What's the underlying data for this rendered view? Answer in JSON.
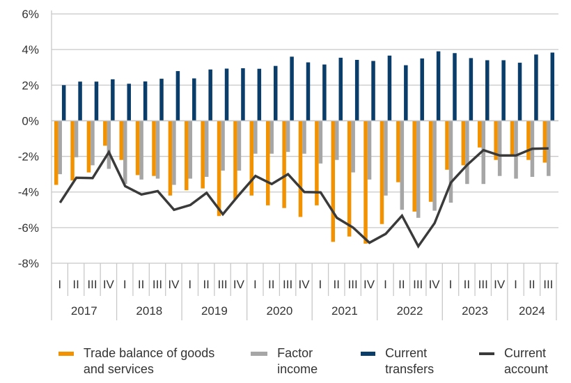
{
  "chart_data": {
    "type": "bar",
    "title": "",
    "xlabel": "",
    "ylabel": "",
    "ylim": [
      -8,
      6
    ],
    "yticks": [
      "-8%",
      "-6%",
      "-4%",
      "-2%",
      "0%",
      "2%",
      "4%",
      "6%"
    ],
    "ytick_values": [
      -8,
      -6,
      -4,
      -2,
      0,
      2,
      4,
      6
    ],
    "grid": true,
    "legend_position": "bottom",
    "years": [
      {
        "label": "2017",
        "quarters": [
          "I",
          "II",
          "III",
          "IV"
        ]
      },
      {
        "label": "2018",
        "quarters": [
          "I",
          "II",
          "III",
          "IV"
        ]
      },
      {
        "label": "2019",
        "quarters": [
          "I",
          "II",
          "III",
          "IV"
        ]
      },
      {
        "label": "2020",
        "quarters": [
          "I",
          "II",
          "III",
          "IV"
        ]
      },
      {
        "label": "2021",
        "quarters": [
          "I",
          "II",
          "III",
          "IV"
        ]
      },
      {
        "label": "2022",
        "quarters": [
          "I",
          "II",
          "III",
          "IV"
        ]
      },
      {
        "label": "2023",
        "quarters": [
          "I",
          "II",
          "III",
          "IV"
        ]
      },
      {
        "label": "2024",
        "quarters": [
          "I",
          "II",
          "III"
        ]
      }
    ],
    "series": [
      {
        "name": "Trade balance of goods and services",
        "type": "bar",
        "color": "#f39200",
        "values": [
          -3.6,
          -3.35,
          -2.9,
          -1.4,
          -2.2,
          -3.05,
          -3.1,
          -4.2,
          -3.9,
          -3.8,
          -5.35,
          -4.4,
          -4.2,
          -4.75,
          -4.9,
          -5.4,
          -4.75,
          -6.8,
          -6.5,
          -6.9,
          -5.8,
          -3.45,
          -5.1,
          -4.55,
          -2.75,
          -2.5,
          -1.5,
          -2.2,
          -1.9,
          -2.2,
          -2.35
        ]
      },
      {
        "name": "Factor income",
        "type": "bar",
        "color": "#a6a6a6",
        "values": [
          -3.0,
          -2.05,
          -2.5,
          -2.7,
          -3.55,
          -3.3,
          -3.25,
          -3.6,
          -3.25,
          -3.15,
          -2.8,
          -2.8,
          -1.85,
          -1.85,
          -1.75,
          -1.85,
          -2.4,
          -2.2,
          -2.9,
          -3.3,
          -4.2,
          -5.0,
          -5.45,
          -5.05,
          -4.6,
          -3.55,
          -3.55,
          -3.1,
          -3.25,
          -3.15,
          -3.1
        ]
      },
      {
        "name": "Current transfers",
        "type": "bar",
        "color": "#0b3d6b",
        "values": [
          2.0,
          2.2,
          2.2,
          2.33,
          2.08,
          2.21,
          2.36,
          2.79,
          2.38,
          2.88,
          2.93,
          2.95,
          2.92,
          3.08,
          3.6,
          3.28,
          3.16,
          3.54,
          3.42,
          3.36,
          3.66,
          3.12,
          3.5,
          3.9,
          3.8,
          3.52,
          3.4,
          3.4,
          3.26,
          3.72,
          3.83
        ]
      },
      {
        "name": "Current account",
        "type": "line",
        "color": "#3a3a3a",
        "values": [
          -4.6,
          -3.2,
          -3.22,
          -1.76,
          -3.67,
          -4.14,
          -3.95,
          -5.0,
          -4.73,
          -4.05,
          -5.25,
          -4.15,
          -3.1,
          -3.55,
          -3.0,
          -4.0,
          -4.02,
          -5.45,
          -6.0,
          -6.85,
          -6.35,
          -5.33,
          -7.05,
          -5.75,
          -3.47,
          -2.48,
          -1.65,
          -1.95,
          -1.95,
          -1.57,
          -1.55
        ]
      }
    ]
  },
  "legend": [
    {
      "label": "Trade balance of goods and services",
      "color": "#f39200",
      "kind": "bar"
    },
    {
      "label": "Factor income",
      "color": "#a6a6a6",
      "kind": "bar"
    },
    {
      "label": "Current transfers",
      "color": "#0b3d6b",
      "kind": "bar"
    },
    {
      "label": "Current account",
      "color": "#3a3a3a",
      "kind": "line"
    }
  ]
}
